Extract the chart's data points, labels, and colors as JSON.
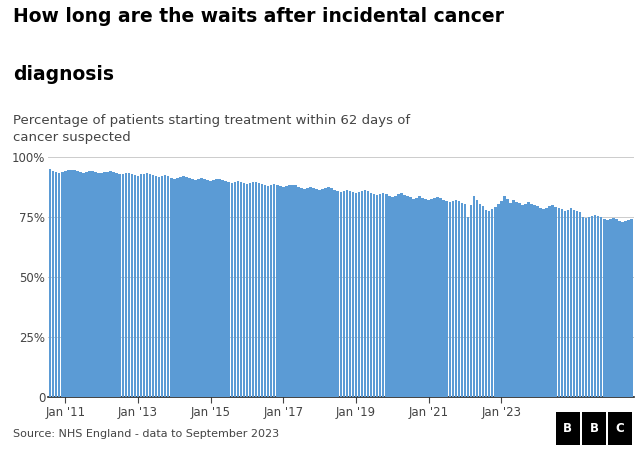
{
  "title_line1": "How long are the waits after incidental cancer",
  "title_line2": "diagnosis",
  "subtitle": "Percentage of patients starting treatment within 62 days of\ncancer suspected",
  "bar_color": "#5b9bd5",
  "background_color": "#ffffff",
  "source_text": "Source: NHS England - data to September 2023",
  "bbc_text": "BBC",
  "yticks": [
    0,
    25,
    50,
    75,
    100
  ],
  "xtick_years": [
    2011,
    2013,
    2015,
    2017,
    2019,
    2021,
    2023
  ],
  "values": [
    95.1,
    94.2,
    93.8,
    93.5,
    93.9,
    94.2,
    94.6,
    94.8,
    94.5,
    94.1,
    93.8,
    93.6,
    93.9,
    94.1,
    94.3,
    94.0,
    93.5,
    93.2,
    93.7,
    94.0,
    94.2,
    93.9,
    93.4,
    93.0,
    92.8,
    93.2,
    93.5,
    93.1,
    92.7,
    92.3,
    92.8,
    93.1,
    93.4,
    92.9,
    92.4,
    92.1,
    91.8,
    92.2,
    92.5,
    92.0,
    91.5,
    91.1,
    91.5,
    91.9,
    92.2,
    91.8,
    91.3,
    90.9,
    90.5,
    90.9,
    91.2,
    90.8,
    90.3,
    89.9,
    90.3,
    90.7,
    91.0,
    90.6,
    90.1,
    89.7,
    89.3,
    89.7,
    90.0,
    89.6,
    89.1,
    88.7,
    89.1,
    89.5,
    89.8,
    89.4,
    88.9,
    88.5,
    88.1,
    88.5,
    88.8,
    88.4,
    87.9,
    87.5,
    87.9,
    88.3,
    88.6,
    88.2,
    87.7,
    87.3,
    86.9,
    87.3,
    87.6,
    87.2,
    86.7,
    86.3,
    86.7,
    87.1,
    87.4,
    87.0,
    86.5,
    86.1,
    85.5,
    86.0,
    86.5,
    86.0,
    85.4,
    84.9,
    85.4,
    85.9,
    86.3,
    85.8,
    85.2,
    84.7,
    84.1,
    84.6,
    85.1,
    84.6,
    84.0,
    83.5,
    84.0,
    84.5,
    84.9,
    84.4,
    83.8,
    83.3,
    82.7,
    83.2,
    83.7,
    83.2,
    82.6,
    82.0,
    82.6,
    83.1,
    83.5,
    83.0,
    82.3,
    81.8,
    81.2,
    81.7,
    82.2,
    81.7,
    81.1,
    80.5,
    75.0,
    80.0,
    84.0,
    82.0,
    80.5,
    79.5,
    78.0,
    77.5,
    78.5,
    79.2,
    80.5,
    81.8,
    84.0,
    82.5,
    81.0,
    82.0,
    81.5,
    80.8,
    80.2,
    80.7,
    81.2,
    80.7,
    80.1,
    79.5,
    79.0,
    78.5,
    79.0,
    79.5,
    79.9,
    79.4,
    78.8,
    78.3,
    77.7,
    78.2,
    78.7,
    78.2,
    77.6,
    77.0,
    75.0,
    74.5,
    75.0,
    75.5,
    76.0,
    75.5,
    74.9,
    74.3,
    73.7,
    74.2,
    74.7,
    74.2,
    73.6,
    73.0,
    73.5,
    74.0,
    74.4
  ],
  "start_year": 2010,
  "start_month": 8
}
